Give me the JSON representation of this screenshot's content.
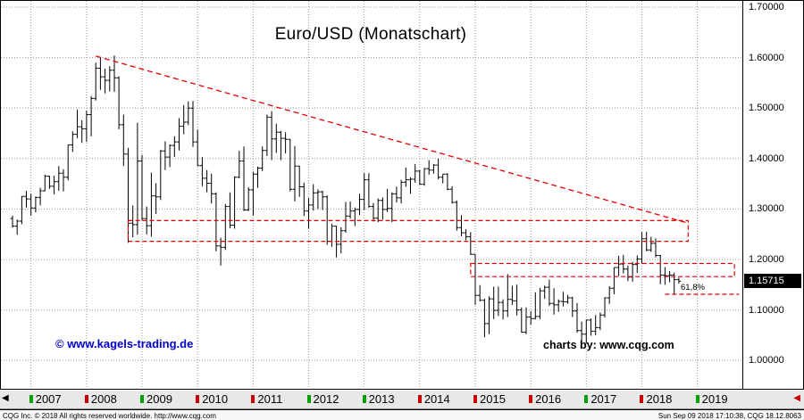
{
  "chart_data": {
    "type": "ohlc-bar",
    "title": "Euro/USD (Monatschart)",
    "timeframe": "monthly",
    "x_axis": {
      "start": "2006-09",
      "end": "2018-09"
    },
    "y_axis": {
      "labels": [
        {
          "text": "1.70000",
          "value": 1.7
        },
        {
          "text": "1.60000",
          "value": 1.6
        },
        {
          "text": "1.50000",
          "value": 1.5
        },
        {
          "text": "1.40000",
          "value": 1.4
        },
        {
          "text": "1.30000",
          "value": 1.3
        },
        {
          "text": "1.20000",
          "value": 1.2
        },
        {
          "text": "1.10000",
          "value": 1.1
        },
        {
          "text": "1.00000",
          "value": 1.0
        }
      ]
    },
    "last_price": {
      "text": "1.15715",
      "value": 1.15715
    },
    "trendline": {
      "from": {
        "month": "2008-03",
        "price": 1.603
      },
      "to": {
        "month": "2018-11",
        "price": 1.272
      }
    },
    "zones": [
      {
        "from": "2008-10",
        "to": "2018-11",
        "top": 1.277,
        "bottom": 1.236
      },
      {
        "from": "2014-12",
        "to": "2019-09",
        "top": 1.192,
        "bottom": 1.166
      }
    ],
    "fib_line": {
      "price": 1.131,
      "label": "61,8%",
      "from": "2018-06",
      "to": "2019-10"
    },
    "bars": [
      [
        "2006-09",
        1.281,
        1.287,
        1.263,
        1.266
      ],
      [
        "2006-10",
        1.266,
        1.279,
        1.249,
        1.276
      ],
      [
        "2006-11",
        1.276,
        1.326,
        1.27,
        1.325
      ],
      [
        "2006-12",
        1.325,
        1.336,
        1.303,
        1.32
      ],
      [
        "2007-01",
        1.32,
        1.33,
        1.287,
        1.302
      ],
      [
        "2007-02",
        1.302,
        1.325,
        1.293,
        1.323
      ],
      [
        "2007-03",
        1.323,
        1.342,
        1.307,
        1.336
      ],
      [
        "2007-04",
        1.336,
        1.368,
        1.335,
        1.365
      ],
      [
        "2007-05",
        1.365,
        1.366,
        1.34,
        1.345
      ],
      [
        "2007-06",
        1.345,
        1.366,
        1.329,
        1.354
      ],
      [
        "2007-07",
        1.354,
        1.385,
        1.336,
        1.371
      ],
      [
        "2007-08",
        1.371,
        1.379,
        1.335,
        1.363
      ],
      [
        "2007-09",
        1.363,
        1.427,
        1.357,
        1.427
      ],
      [
        "2007-10",
        1.427,
        1.454,
        1.413,
        1.448
      ],
      [
        "2007-11",
        1.448,
        1.497,
        1.44,
        1.463
      ],
      [
        "2007-12",
        1.463,
        1.476,
        1.431,
        1.459
      ],
      [
        "2008-01",
        1.459,
        1.495,
        1.433,
        1.487
      ],
      [
        "2008-02",
        1.487,
        1.524,
        1.444,
        1.519
      ],
      [
        "2008-03",
        1.519,
        1.59,
        1.515,
        1.579
      ],
      [
        "2008-04",
        1.579,
        1.601,
        1.536,
        1.562
      ],
      [
        "2008-05",
        1.562,
        1.578,
        1.529,
        1.555
      ],
      [
        "2008-06",
        1.555,
        1.583,
        1.533,
        1.575
      ],
      [
        "2008-07",
        1.575,
        1.604,
        1.532,
        1.56
      ],
      [
        "2008-08",
        1.56,
        1.563,
        1.458,
        1.467
      ],
      [
        "2008-09",
        1.467,
        1.487,
        1.385,
        1.409
      ],
      [
        "2008-10",
        1.409,
        1.421,
        1.233,
        1.272
      ],
      [
        "2008-11",
        1.272,
        1.307,
        1.244,
        1.269
      ],
      [
        "2008-12",
        1.269,
        1.471,
        1.249,
        1.395
      ],
      [
        "2009-01",
        1.395,
        1.407,
        1.278,
        1.281
      ],
      [
        "2009-02",
        1.281,
        1.305,
        1.25,
        1.267
      ],
      [
        "2009-03",
        1.267,
        1.372,
        1.245,
        1.326
      ],
      [
        "2009-04",
        1.326,
        1.351,
        1.29,
        1.324
      ],
      [
        "2009-05",
        1.324,
        1.417,
        1.318,
        1.415
      ],
      [
        "2009-06",
        1.415,
        1.434,
        1.377,
        1.403
      ],
      [
        "2009-07",
        1.403,
        1.428,
        1.383,
        1.426
      ],
      [
        "2009-08",
        1.426,
        1.444,
        1.403,
        1.433
      ],
      [
        "2009-09",
        1.433,
        1.48,
        1.416,
        1.464
      ],
      [
        "2009-10",
        1.464,
        1.506,
        1.448,
        1.472
      ],
      [
        "2009-11",
        1.472,
        1.513,
        1.466,
        1.5
      ],
      [
        "2009-12",
        1.5,
        1.514,
        1.423,
        1.433
      ],
      [
        "2010-01",
        1.433,
        1.457,
        1.385,
        1.386
      ],
      [
        "2010-02",
        1.386,
        1.403,
        1.345,
        1.361
      ],
      [
        "2010-03",
        1.361,
        1.377,
        1.333,
        1.351
      ],
      [
        "2010-04",
        1.351,
        1.37,
        1.311,
        1.33
      ],
      [
        "2010-05",
        1.33,
        1.333,
        1.216,
        1.227
      ],
      [
        "2010-06",
        1.227,
        1.243,
        1.188,
        1.224
      ],
      [
        "2010-07",
        1.224,
        1.31,
        1.219,
        1.305
      ],
      [
        "2010-08",
        1.305,
        1.333,
        1.262,
        1.268
      ],
      [
        "2010-09",
        1.268,
        1.365,
        1.261,
        1.363
      ],
      [
        "2010-10",
        1.363,
        1.415,
        1.361,
        1.395
      ],
      [
        "2010-11",
        1.395,
        1.424,
        1.296,
        1.298
      ],
      [
        "2010-12",
        1.298,
        1.343,
        1.296,
        1.338
      ],
      [
        "2011-01",
        1.338,
        1.374,
        1.287,
        1.369
      ],
      [
        "2011-02",
        1.369,
        1.384,
        1.342,
        1.381
      ],
      [
        "2011-03",
        1.381,
        1.424,
        1.375,
        1.416
      ],
      [
        "2011-04",
        1.416,
        1.487,
        1.405,
        1.482
      ],
      [
        "2011-05",
        1.482,
        1.494,
        1.397,
        1.439
      ],
      [
        "2011-06",
        1.439,
        1.469,
        1.411,
        1.452
      ],
      [
        "2011-07",
        1.452,
        1.455,
        1.397,
        1.44
      ],
      [
        "2011-08",
        1.44,
        1.452,
        1.41,
        1.438
      ],
      [
        "2011-09",
        1.438,
        1.439,
        1.335,
        1.339
      ],
      [
        "2011-10",
        1.339,
        1.425,
        1.315,
        1.385
      ],
      [
        "2011-11",
        1.385,
        1.386,
        1.324,
        1.344
      ],
      [
        "2011-12",
        1.344,
        1.352,
        1.286,
        1.296
      ],
      [
        "2012-01",
        1.296,
        1.322,
        1.261,
        1.308
      ],
      [
        "2012-02",
        1.308,
        1.349,
        1.297,
        1.332
      ],
      [
        "2012-03",
        1.332,
        1.339,
        1.3,
        1.334
      ],
      [
        "2012-04",
        1.334,
        1.336,
        1.298,
        1.324
      ],
      [
        "2012-05",
        1.324,
        1.327,
        1.229,
        1.236
      ],
      [
        "2012-06",
        1.236,
        1.271,
        1.225,
        1.266
      ],
      [
        "2012-07",
        1.266,
        1.267,
        1.204,
        1.23
      ],
      [
        "2012-08",
        1.23,
        1.264,
        1.212,
        1.257
      ],
      [
        "2012-09",
        1.257,
        1.314,
        1.253,
        1.286
      ],
      [
        "2012-10",
        1.286,
        1.315,
        1.281,
        1.296
      ],
      [
        "2012-11",
        1.296,
        1.303,
        1.266,
        1.299
      ],
      [
        "2012-12",
        1.299,
        1.33,
        1.288,
        1.319
      ],
      [
        "2013-01",
        1.319,
        1.371,
        1.298,
        1.358
      ],
      [
        "2013-02",
        1.358,
        1.371,
        1.303,
        1.305
      ],
      [
        "2013-03",
        1.305,
        1.312,
        1.275,
        1.282
      ],
      [
        "2013-04",
        1.282,
        1.321,
        1.274,
        1.317
      ],
      [
        "2013-05",
        1.317,
        1.323,
        1.279,
        1.299
      ],
      [
        "2013-06",
        1.299,
        1.34,
        1.294,
        1.301
      ],
      [
        "2013-07",
        1.301,
        1.333,
        1.274,
        1.33
      ],
      [
        "2013-08",
        1.33,
        1.344,
        1.313,
        1.322
      ],
      [
        "2013-09",
        1.322,
        1.358,
        1.311,
        1.353
      ],
      [
        "2013-10",
        1.353,
        1.382,
        1.344,
        1.358
      ],
      [
        "2013-11",
        1.358,
        1.363,
        1.33,
        1.359
      ],
      [
        "2013-12",
        1.359,
        1.389,
        1.352,
        1.375
      ],
      [
        "2014-01",
        1.375,
        1.377,
        1.348,
        1.349
      ],
      [
        "2014-02",
        1.349,
        1.381,
        1.346,
        1.38
      ],
      [
        "2014-03",
        1.38,
        1.397,
        1.368,
        1.377
      ],
      [
        "2014-04",
        1.377,
        1.389,
        1.37,
        1.387
      ],
      [
        "2014-05",
        1.387,
        1.4,
        1.359,
        1.363
      ],
      [
        "2014-06",
        1.363,
        1.369,
        1.351,
        1.369
      ],
      [
        "2014-07",
        1.369,
        1.371,
        1.337,
        1.339
      ],
      [
        "2014-08",
        1.339,
        1.345,
        1.311,
        1.313
      ],
      [
        "2014-09",
        1.313,
        1.317,
        1.257,
        1.263
      ],
      [
        "2014-10",
        1.263,
        1.288,
        1.246,
        1.253
      ],
      [
        "2014-11",
        1.253,
        1.26,
        1.238,
        1.245
      ],
      [
        "2014-12",
        1.245,
        1.254,
        1.209,
        1.21
      ],
      [
        "2015-01",
        1.21,
        1.21,
        1.11,
        1.129
      ],
      [
        "2015-02",
        1.129,
        1.149,
        1.117,
        1.119
      ],
      [
        "2015-03",
        1.119,
        1.122,
        1.046,
        1.073
      ],
      [
        "2015-04",
        1.073,
        1.127,
        1.052,
        1.122
      ],
      [
        "2015-05",
        1.122,
        1.146,
        1.082,
        1.099
      ],
      [
        "2015-06",
        1.099,
        1.146,
        1.088,
        1.115
      ],
      [
        "2015-07",
        1.115,
        1.121,
        1.081,
        1.098
      ],
      [
        "2015-08",
        1.098,
        1.171,
        1.086,
        1.121
      ],
      [
        "2015-09",
        1.121,
        1.148,
        1.11,
        1.118
      ],
      [
        "2015-10",
        1.118,
        1.15,
        1.089,
        1.1
      ],
      [
        "2015-11",
        1.1,
        1.105,
        1.055,
        1.056
      ],
      [
        "2015-12",
        1.056,
        1.105,
        1.052,
        1.086
      ],
      [
        "2016-01",
        1.086,
        1.098,
        1.071,
        1.083
      ],
      [
        "2016-02",
        1.083,
        1.135,
        1.081,
        1.087
      ],
      [
        "2016-03",
        1.087,
        1.144,
        1.082,
        1.138
      ],
      [
        "2016-04",
        1.138,
        1.148,
        1.122,
        1.145
      ],
      [
        "2016-05",
        1.145,
        1.16,
        1.108,
        1.113
      ],
      [
        "2016-06",
        1.113,
        1.143,
        1.091,
        1.11
      ],
      [
        "2016-07",
        1.11,
        1.121,
        1.096,
        1.117
      ],
      [
        "2016-08",
        1.117,
        1.136,
        1.107,
        1.116
      ],
      [
        "2016-09",
        1.116,
        1.13,
        1.112,
        1.124
      ],
      [
        "2016-10",
        1.124,
        1.126,
        1.086,
        1.098
      ],
      [
        "2016-11",
        1.098,
        1.114,
        1.055,
        1.059
      ],
      [
        "2016-12",
        1.059,
        1.077,
        1.034,
        1.052
      ],
      [
        "2017-01",
        1.052,
        1.08,
        1.034,
        1.08
      ],
      [
        "2017-02",
        1.08,
        1.083,
        1.049,
        1.058
      ],
      [
        "2017-03",
        1.058,
        1.09,
        1.05,
        1.065
      ],
      [
        "2017-04",
        1.065,
        1.095,
        1.06,
        1.09
      ],
      [
        "2017-05",
        1.09,
        1.125,
        1.085,
        1.124
      ],
      [
        "2017-06",
        1.124,
        1.147,
        1.112,
        1.143
      ],
      [
        "2017-07",
        1.143,
        1.184,
        1.131,
        1.184
      ],
      [
        "2017-08",
        1.184,
        1.207,
        1.167,
        1.191
      ],
      [
        "2017-09",
        1.191,
        1.209,
        1.172,
        1.181
      ],
      [
        "2017-10",
        1.181,
        1.188,
        1.157,
        1.165
      ],
      [
        "2017-11",
        1.165,
        1.195,
        1.156,
        1.19
      ],
      [
        "2017-12",
        1.19,
        1.208,
        1.173,
        1.201
      ],
      [
        "2018-01",
        1.201,
        1.254,
        1.192,
        1.241
      ],
      [
        "2018-02",
        1.241,
        1.255,
        1.216,
        1.219
      ],
      [
        "2018-03",
        1.219,
        1.245,
        1.215,
        1.232
      ],
      [
        "2018-04",
        1.232,
        1.242,
        1.204,
        1.208
      ],
      [
        "2018-05",
        1.208,
        1.209,
        1.151,
        1.169
      ],
      [
        "2018-06",
        1.169,
        1.185,
        1.15,
        1.168
      ],
      [
        "2018-07",
        1.168,
        1.177,
        1.155,
        1.169
      ],
      [
        "2018-08",
        1.169,
        1.174,
        1.13,
        1.16
      ],
      [
        "2018-09",
        1.16,
        1.164,
        1.152,
        1.157
      ]
    ],
    "grid": true,
    "legend": "none"
  },
  "watermarks": {
    "left": "© www.kagels-trading.de",
    "right": "charts by: www.cqg.com"
  },
  "timeline": {
    "left_arrow": "◀",
    "right_arrow": "◀",
    "years": [
      {
        "label": "2007",
        "tick": "green"
      },
      {
        "label": "2008",
        "tick": "red"
      },
      {
        "label": "2009",
        "tick": "green"
      },
      {
        "label": "2010",
        "tick": "red"
      },
      {
        "label": "2011",
        "tick": "red"
      },
      {
        "label": "2012",
        "tick": "green"
      },
      {
        "label": "2013",
        "tick": "green"
      },
      {
        "label": "2014",
        "tick": "red"
      },
      {
        "label": "2015",
        "tick": "red"
      },
      {
        "label": "2016",
        "tick": "red"
      },
      {
        "label": "2017",
        "tick": "green"
      },
      {
        "label": "2018",
        "tick": "red"
      },
      {
        "label": "2019",
        "tick": "green"
      }
    ]
  },
  "status_bar": {
    "left": "CQG Inc. © 2018 All rights reserved worldwide. http://www.cqg.com",
    "right": "Sun Sep 09 2018 17:10:38, CQG 18.12.8063"
  },
  "colors": {
    "annotation": "#e60000",
    "watermark_left": "#0000cc",
    "price_box_bg": "#000000",
    "price_box_text": "#ffffff",
    "bar": "#000000",
    "grid": "#9a9a9a",
    "up_tick": "#00a000",
    "down_tick": "#cc0000"
  }
}
